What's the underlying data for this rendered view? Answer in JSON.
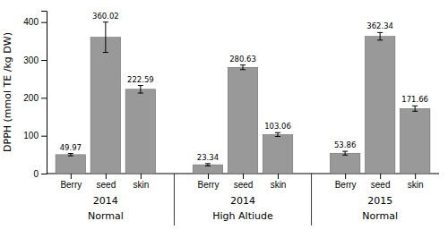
{
  "chart_data": {
    "type": "bar",
    "ylabel": "DPPH (mmol TE /kg DW)",
    "color": "#999999",
    "data_labels": true,
    "ylim": [
      0,
      430
    ],
    "yticks": [
      0,
      100,
      200,
      300,
      400
    ],
    "groups": [
      {
        "year": "2014",
        "altitude": "Normal",
        "categories": [
          "Berry",
          "seed",
          "skin"
        ],
        "values": [
          49.97,
          360.02,
          222.59
        ],
        "errors": [
          3,
          40,
          10
        ]
      },
      {
        "year": "2014",
        "altitude": "High Altiude",
        "categories": [
          "Berry",
          "seed",
          "skin"
        ],
        "values": [
          23.34,
          280.63,
          103.06
        ],
        "errors": [
          3,
          6,
          5
        ]
      },
      {
        "year": "2015",
        "altitude": "Normal",
        "categories": [
          "Berry",
          "seed",
          "skin"
        ],
        "values": [
          53.86,
          362.34,
          171.66
        ],
        "errors": [
          5,
          10,
          7
        ]
      }
    ]
  }
}
